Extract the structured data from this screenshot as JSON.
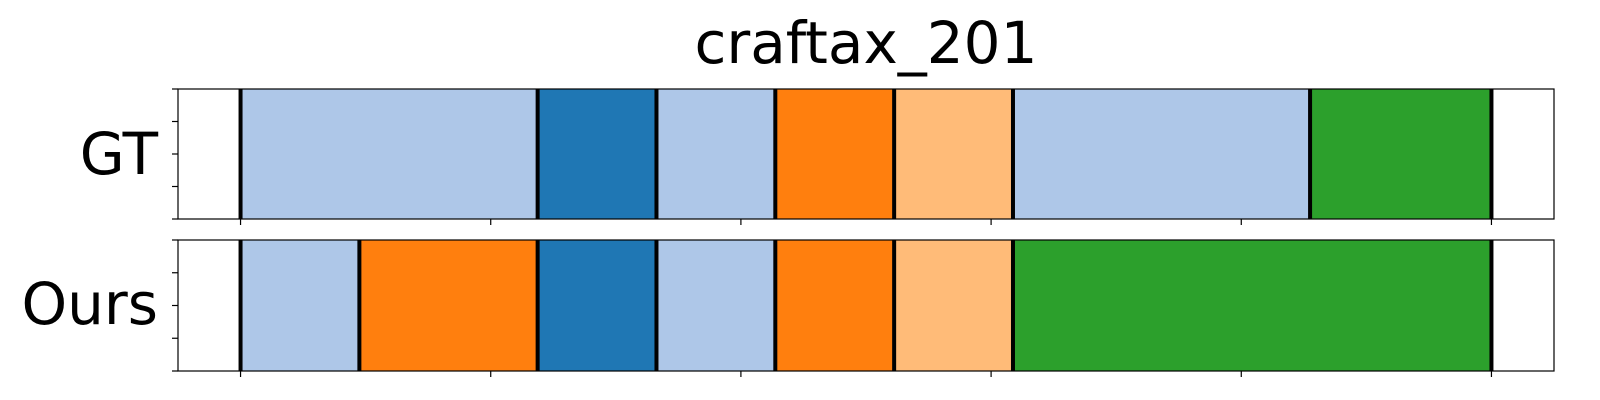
{
  "chart_data": {
    "type": "segmentation-timeline",
    "title": "craftax_201",
    "x_domain": [
      -1,
      21
    ],
    "x_ticks": [
      0,
      4,
      8,
      12,
      16,
      20
    ],
    "rows": [
      {
        "label": "GT",
        "segments": [
          {
            "start": 0.0,
            "end": 4.75,
            "color": "#aec7e8"
          },
          {
            "start": 4.75,
            "end": 6.65,
            "color": "#1f77b4"
          },
          {
            "start": 6.65,
            "end": 8.55,
            "color": "#aec7e8"
          },
          {
            "start": 8.55,
            "end": 10.45,
            "color": "#ff7f0e"
          },
          {
            "start": 10.45,
            "end": 12.35,
            "color": "#ffbb78"
          },
          {
            "start": 12.35,
            "end": 17.1,
            "color": "#aec7e8"
          },
          {
            "start": 17.1,
            "end": 20.0,
            "color": "#2ca02c"
          }
        ]
      },
      {
        "label": "Ours",
        "segments": [
          {
            "start": 0.0,
            "end": 1.9,
            "color": "#aec7e8"
          },
          {
            "start": 1.9,
            "end": 4.75,
            "color": "#ff7f0e"
          },
          {
            "start": 4.75,
            "end": 6.65,
            "color": "#1f77b4"
          },
          {
            "start": 6.65,
            "end": 8.55,
            "color": "#aec7e8"
          },
          {
            "start": 8.55,
            "end": 10.45,
            "color": "#ff7f0e"
          },
          {
            "start": 10.45,
            "end": 12.35,
            "color": "#ffbb78"
          },
          {
            "start": 12.35,
            "end": 20.0,
            "color": "#2ca02c"
          }
        ]
      }
    ]
  }
}
